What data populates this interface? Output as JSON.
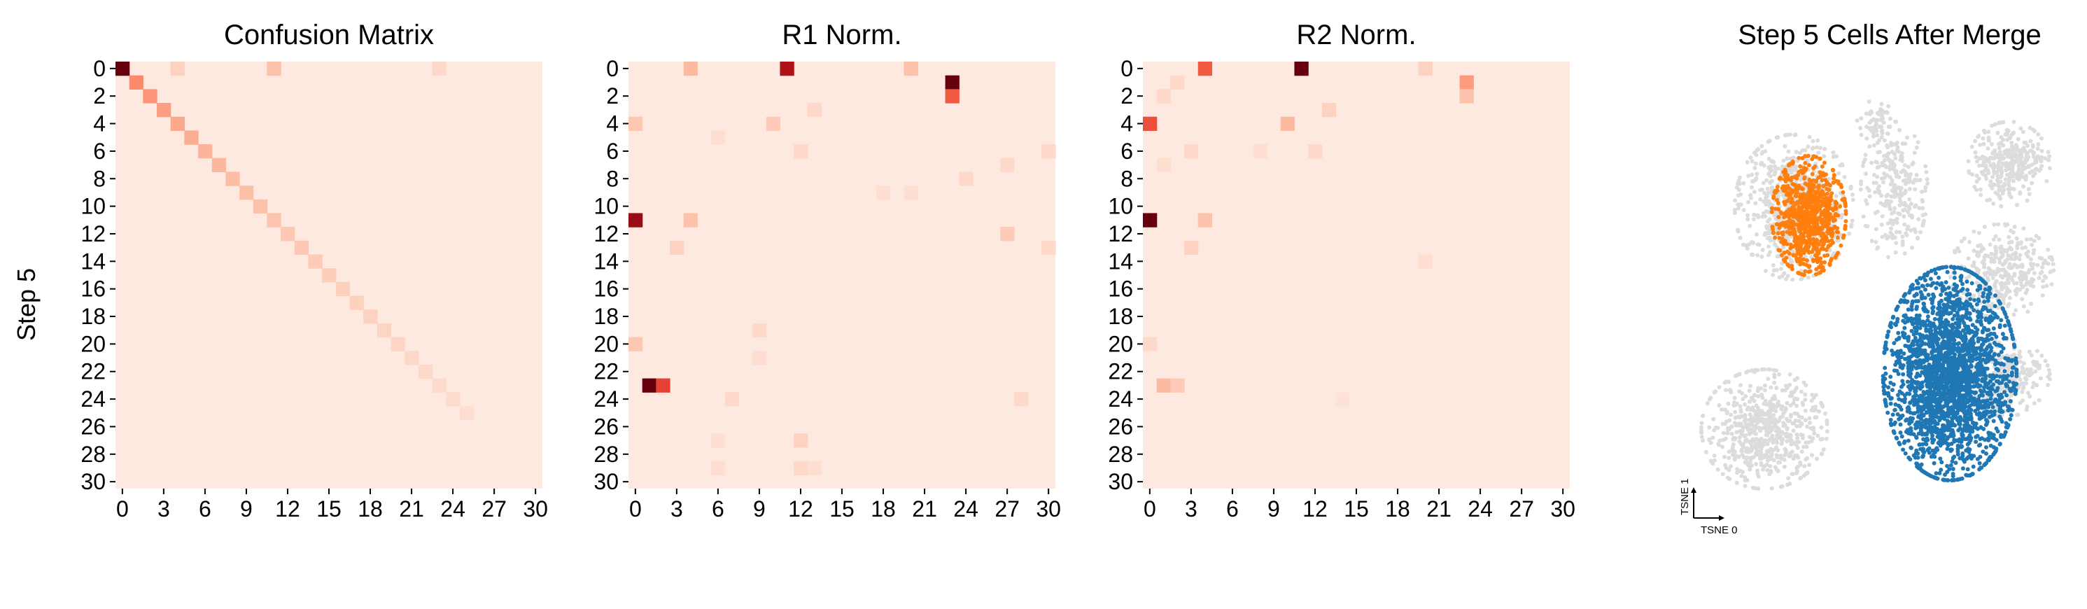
{
  "figure": {
    "y_label": "Step 5"
  },
  "chart_data": [
    {
      "type": "heatmap",
      "title": "Confusion Matrix",
      "size": 31,
      "x_ticks": [
        0,
        3,
        6,
        9,
        12,
        15,
        18,
        21,
        24,
        27,
        30
      ],
      "y_ticks": [
        0,
        2,
        4,
        6,
        8,
        10,
        12,
        14,
        16,
        18,
        20,
        22,
        24,
        26,
        28,
        30
      ],
      "ylabel": "Step 5",
      "colormap": [
        "#fff5f0",
        "#fcbba1",
        "#fb6a4a",
        "#cb181d",
        "#67000d"
      ],
      "base_value": 0.05,
      "cells": [
        [
          0,
          0,
          1.0
        ],
        [
          0,
          11,
          0.22
        ],
        [
          0,
          4,
          0.15
        ],
        [
          0,
          23,
          0.12
        ],
        [
          1,
          1,
          0.4
        ],
        [
          2,
          2,
          0.37
        ],
        [
          3,
          3,
          0.34
        ],
        [
          4,
          4,
          0.31
        ],
        [
          5,
          5,
          0.29
        ],
        [
          6,
          6,
          0.27
        ],
        [
          7,
          7,
          0.26
        ],
        [
          8,
          8,
          0.24
        ],
        [
          9,
          9,
          0.23
        ],
        [
          10,
          10,
          0.22
        ],
        [
          11,
          11,
          0.21
        ],
        [
          12,
          12,
          0.2
        ],
        [
          13,
          13,
          0.19
        ],
        [
          14,
          14,
          0.18
        ],
        [
          15,
          15,
          0.17
        ],
        [
          16,
          16,
          0.16
        ],
        [
          17,
          17,
          0.155
        ],
        [
          18,
          18,
          0.15
        ],
        [
          19,
          19,
          0.14
        ],
        [
          20,
          20,
          0.135
        ],
        [
          21,
          21,
          0.13
        ],
        [
          22,
          22,
          0.12
        ],
        [
          23,
          23,
          0.115
        ],
        [
          24,
          24,
          0.11
        ],
        [
          25,
          25,
          0.1
        ]
      ]
    },
    {
      "type": "heatmap",
      "title": "R1 Norm.",
      "size": 31,
      "x_ticks": [
        0,
        3,
        6,
        9,
        12,
        15,
        18,
        21,
        24,
        27,
        30
      ],
      "y_ticks": [
        0,
        2,
        4,
        6,
        8,
        10,
        12,
        14,
        16,
        18,
        20,
        22,
        24,
        26,
        28,
        30
      ],
      "colormap": [
        "#fff5f0",
        "#fcbba1",
        "#fb6a4a",
        "#cb181d",
        "#67000d"
      ],
      "base_value": 0.05,
      "cells": [
        [
          0,
          11,
          0.82
        ],
        [
          0,
          4,
          0.25
        ],
        [
          0,
          20,
          0.22
        ],
        [
          1,
          23,
          1.0
        ],
        [
          2,
          23,
          0.55
        ],
        [
          3,
          13,
          0.12
        ],
        [
          4,
          0,
          0.2
        ],
        [
          4,
          10,
          0.18
        ],
        [
          5,
          6,
          0.1
        ],
        [
          6,
          12,
          0.12
        ],
        [
          6,
          30,
          0.12
        ],
        [
          7,
          27,
          0.12
        ],
        [
          8,
          24,
          0.12
        ],
        [
          9,
          18,
          0.1
        ],
        [
          9,
          20,
          0.1
        ],
        [
          11,
          0,
          0.88
        ],
        [
          11,
          4,
          0.22
        ],
        [
          12,
          27,
          0.18
        ],
        [
          13,
          3,
          0.15
        ],
        [
          13,
          30,
          0.12
        ],
        [
          19,
          9,
          0.12
        ],
        [
          20,
          0,
          0.2
        ],
        [
          21,
          9,
          0.1
        ],
        [
          23,
          1,
          1.0
        ],
        [
          23,
          2,
          0.62
        ],
        [
          24,
          7,
          0.12
        ],
        [
          24,
          28,
          0.12
        ],
        [
          27,
          6,
          0.1
        ],
        [
          27,
          12,
          0.15
        ],
        [
          29,
          6,
          0.1
        ],
        [
          29,
          12,
          0.12
        ],
        [
          29,
          13,
          0.1
        ]
      ]
    },
    {
      "type": "heatmap",
      "title": "R2 Norm.",
      "size": 31,
      "x_ticks": [
        0,
        3,
        6,
        9,
        12,
        15,
        18,
        21,
        24,
        27,
        30
      ],
      "y_ticks": [
        0,
        2,
        4,
        6,
        8,
        10,
        12,
        14,
        16,
        18,
        20,
        22,
        24,
        26,
        28,
        30
      ],
      "colormap": [
        "#fff5f0",
        "#fcbba1",
        "#fb6a4a",
        "#cb181d",
        "#67000d"
      ],
      "base_value": 0.05,
      "cells": [
        [
          0,
          4,
          0.55
        ],
        [
          0,
          11,
          1.0
        ],
        [
          0,
          20,
          0.15
        ],
        [
          1,
          23,
          0.35
        ],
        [
          2,
          23,
          0.22
        ],
        [
          1,
          2,
          0.12
        ],
        [
          2,
          1,
          0.12
        ],
        [
          3,
          13,
          0.15
        ],
        [
          4,
          0,
          0.58
        ],
        [
          4,
          10,
          0.25
        ],
        [
          6,
          3,
          0.12
        ],
        [
          6,
          8,
          0.1
        ],
        [
          6,
          12,
          0.12
        ],
        [
          7,
          1,
          0.1
        ],
        [
          11,
          0,
          1.0
        ],
        [
          11,
          4,
          0.22
        ],
        [
          13,
          3,
          0.15
        ],
        [
          14,
          20,
          0.1
        ],
        [
          20,
          0,
          0.12
        ],
        [
          23,
          1,
          0.25
        ],
        [
          23,
          2,
          0.18
        ],
        [
          24,
          14,
          0.08
        ]
      ]
    },
    {
      "type": "scatter",
      "title": "Step 5 Cells After Merge",
      "xlabel": "TSNE 0",
      "ylabel": "TSNE 1",
      "colors": {
        "background": "#dcdcdc",
        "cluster_a": "#ff7f0e",
        "cluster_b": "#1f77b4"
      },
      "background_clusters": [
        {
          "cx": 0.28,
          "cy": 0.28,
          "rx": 0.16,
          "ry": 0.17,
          "n": 700
        },
        {
          "cx": 0.2,
          "cy": 0.8,
          "rx": 0.17,
          "ry": 0.14,
          "n": 650
        },
        {
          "cx": 0.55,
          "cy": 0.24,
          "rx": 0.09,
          "ry": 0.16,
          "n": 260
        },
        {
          "cx": 0.86,
          "cy": 0.18,
          "rx": 0.11,
          "ry": 0.1,
          "n": 320
        },
        {
          "cx": 0.84,
          "cy": 0.43,
          "rx": 0.14,
          "ry": 0.11,
          "n": 320
        },
        {
          "cx": 0.5,
          "cy": 0.08,
          "rx": 0.05,
          "ry": 0.05,
          "n": 60
        },
        {
          "cx": 0.85,
          "cy": 0.68,
          "rx": 0.12,
          "ry": 0.09,
          "n": 250
        }
      ],
      "cluster_a": {
        "cx": 0.32,
        "cy": 0.3,
        "rx": 0.1,
        "ry": 0.14,
        "n": 800
      },
      "cluster_b": {
        "cx": 0.7,
        "cy": 0.67,
        "rx": 0.18,
        "ry": 0.25,
        "n": 2400
      }
    }
  ]
}
